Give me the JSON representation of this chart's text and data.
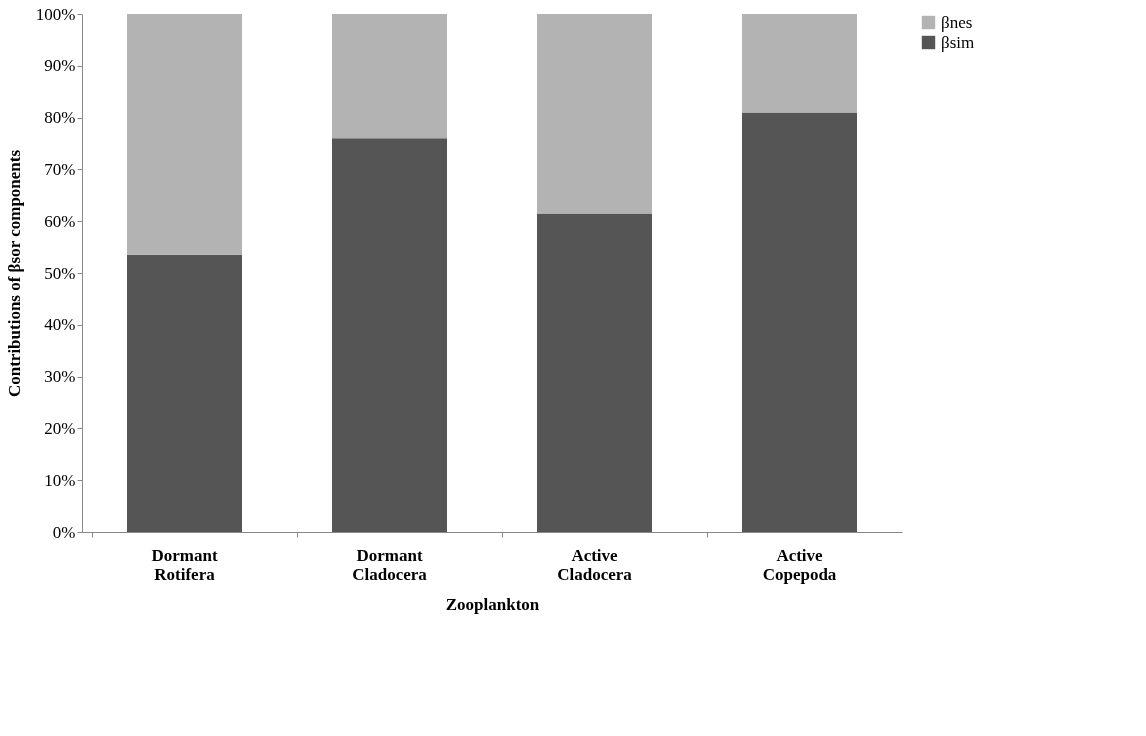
{
  "chart_data": {
    "type": "bar",
    "stacked": true,
    "xlabel": "Zooplankton",
    "ylabel": "Contributions of βsor components",
    "categories": [
      "Dormant Rotifera",
      "Dormant Cladocera",
      "Active Cladocera",
      "Active Copepoda"
    ],
    "series": [
      {
        "name": "βsim",
        "color": "#555555",
        "values": [
          53.5,
          76,
          61.5,
          81
        ]
      },
      {
        "name": "βnes",
        "color": "#b3b3b3",
        "values": [
          46.5,
          24,
          38.5,
          19
        ]
      }
    ],
    "ylim": [
      0,
      100
    ],
    "yticks": [
      {
        "value": 0,
        "label": "0%"
      },
      {
        "value": 10,
        "label": "10%"
      },
      {
        "value": 20,
        "label": "20%"
      },
      {
        "value": 30,
        "label": "30%"
      },
      {
        "value": 40,
        "label": "40%"
      },
      {
        "value": 50,
        "label": "50%"
      },
      {
        "value": 60,
        "label": "60%"
      },
      {
        "value": 70,
        "label": "70%"
      },
      {
        "value": 80,
        "label": "80%"
      },
      {
        "value": 90,
        "label": "90%"
      },
      {
        "value": 100,
        "label": "100%"
      }
    ],
    "grid": false,
    "legend": "right"
  }
}
